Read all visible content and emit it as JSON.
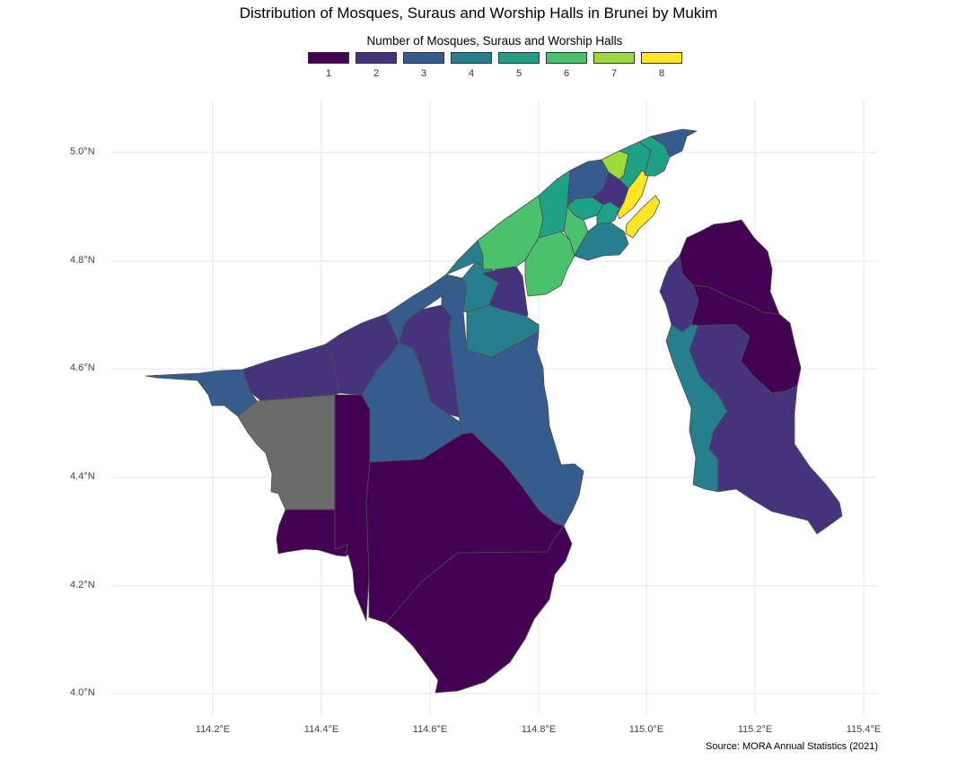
{
  "title": "Distribution of Mosques, Suraus and Worship Halls in Brunei by Mukim",
  "legend": {
    "title": "Number of Mosques, Suraus and Worship Halls",
    "position": "top",
    "items": [
      {
        "label": "1",
        "color": "#440154"
      },
      {
        "label": "2",
        "color": "#46337E"
      },
      {
        "label": "3",
        "color": "#365C8D"
      },
      {
        "label": "4",
        "color": "#277F8E"
      },
      {
        "label": "5",
        "color": "#1FA187"
      },
      {
        "label": "6",
        "color": "#4AC16D"
      },
      {
        "label": "7",
        "color": "#9FDA3A"
      },
      {
        "label": "8",
        "color": "#FDE725"
      }
    ],
    "missing_color": "#6B6B6B"
  },
  "axes": {
    "y_ticks": [
      "4.0°N",
      "4.2°N",
      "4.4°N",
      "4.6°N",
      "4.8°N",
      "5.0°N"
    ],
    "x_ticks": [
      "114.2°E",
      "114.4°E",
      "114.6°E",
      "114.8°E",
      "115.0°E",
      "115.2°E",
      "115.4°E"
    ],
    "grid": true
  },
  "caption": "Source: MORA Annual Statistics (2021)",
  "colors": {
    "grid": "#EBEBEB",
    "border": "#4D4D4D",
    "background": "#FFFFFF"
  }
}
